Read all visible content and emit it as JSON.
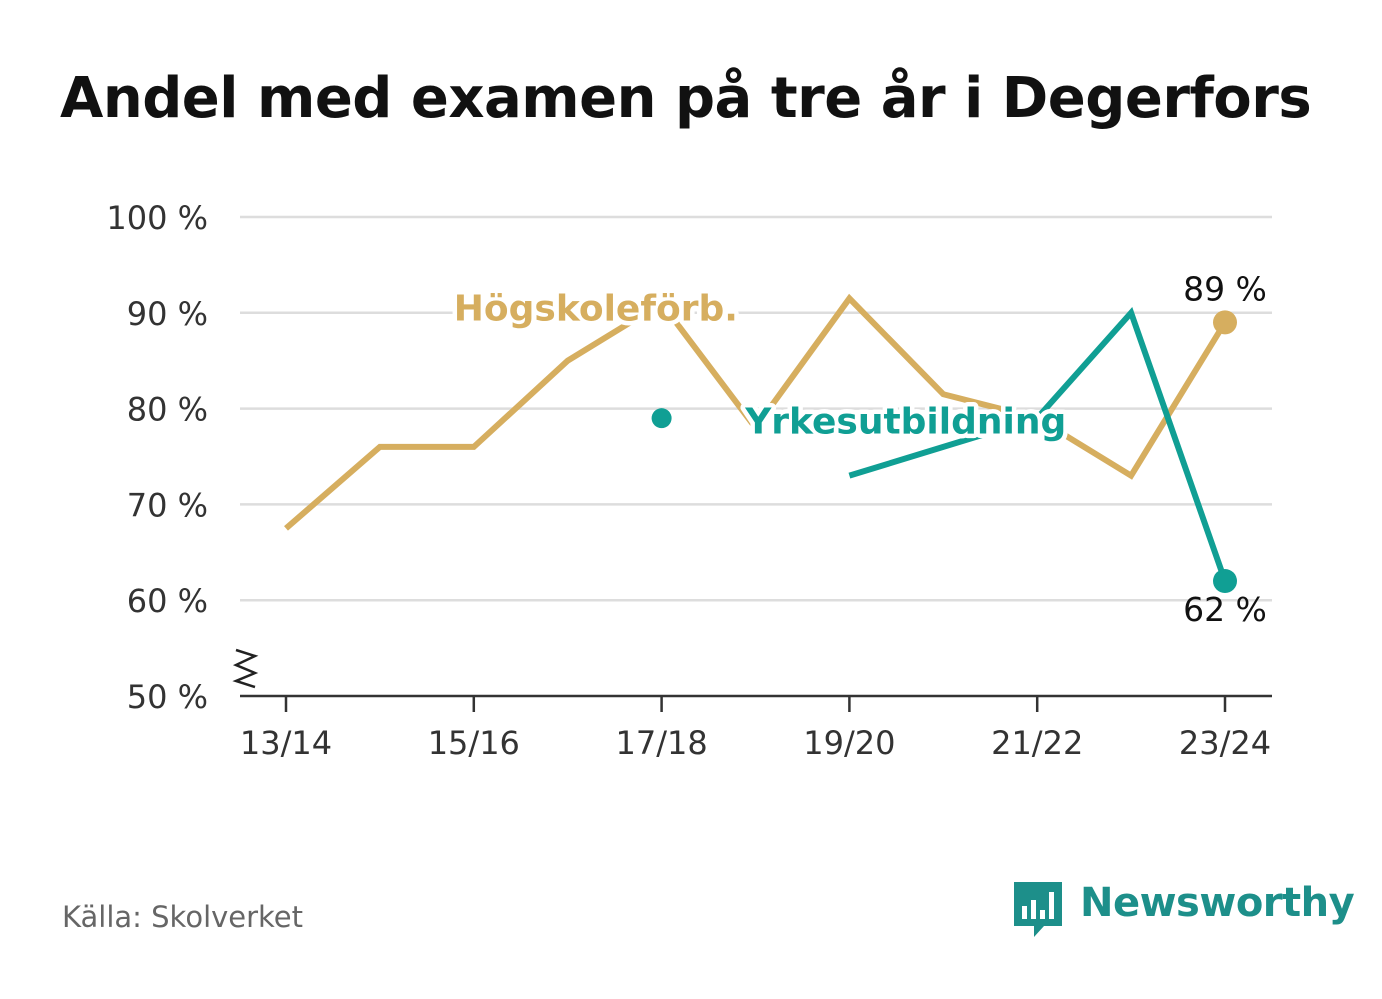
{
  "title": "Andel med examen på tre år i Degerfors",
  "source": "Källa: Skolverket",
  "brand": {
    "name": "Newsworthy",
    "icon": "bar-chart-speech-bubble-icon"
  },
  "colors": {
    "hogskole": "#d6ae5f",
    "yrkes": "#109f94",
    "grid": "#dddddd",
    "axis": "#333333",
    "text": "#333333",
    "brand": "#1d8f8a"
  },
  "chart_data": {
    "type": "line",
    "x": [
      "13/14",
      "14/15",
      "15/16",
      "16/17",
      "17/18",
      "18/19",
      "19/20",
      "20/21",
      "21/22",
      "22/23",
      "23/24"
    ],
    "x_tick_labels": [
      "13/14",
      "15/16",
      "17/18",
      "19/20",
      "21/22",
      "23/24"
    ],
    "y_ticks": [
      {
        "value": 50,
        "label": "50 %"
      },
      {
        "value": 60,
        "label": "60 %"
      },
      {
        "value": 70,
        "label": "70 %"
      },
      {
        "value": 80,
        "label": "80 %"
      },
      {
        "value": 90,
        "label": "90 %"
      },
      {
        "value": 100,
        "label": "100 %"
      }
    ],
    "ylim": [
      50,
      100
    ],
    "y_axis_break": true,
    "grid": true,
    "series": [
      {
        "name": "Högskoleförb.",
        "color": "#d6ae5f",
        "values": [
          67.5,
          76,
          76,
          85,
          91,
          78,
          91.5,
          81.5,
          79,
          73,
          89
        ],
        "end_label": "89 %"
      },
      {
        "name": "Yrkesutbildning",
        "color": "#109f94",
        "values": [
          null,
          null,
          null,
          null,
          79,
          null,
          73,
          76,
          79,
          90,
          62
        ],
        "end_label": "62 %"
      }
    ]
  }
}
